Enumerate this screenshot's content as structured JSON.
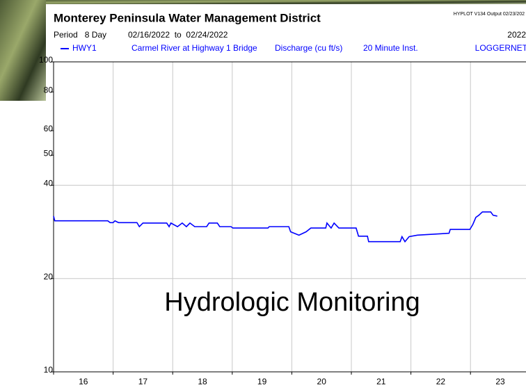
{
  "chart_data": {
    "type": "line",
    "title": "Monterey Peninsula Water Management District",
    "program_note": "HYPLOT V134  Output 02/23/202",
    "period": "Period   8 Day",
    "date_range": "02/16/2022  to  02/24/2022",
    "year": "2022",
    "station": "Carmel River at Highway 1 Bridge",
    "parameter": "Discharge (cu ft/s)",
    "interval": "20 Minute Inst.",
    "source": "LOGGERNET",
    "annotation": "Hydrologic Monitoring",
    "x": [
      16.0,
      16.02,
      16.91,
      16.95,
      17.0,
      17.03,
      17.09,
      17.4,
      17.44,
      17.5,
      17.9,
      17.94,
      17.97,
      18.08,
      18.16,
      18.23,
      18.29,
      18.37,
      18.57,
      18.61,
      18.75,
      18.79,
      18.98,
      19.01,
      19.6,
      19.62,
      19.95,
      19.98,
      20.12,
      20.24,
      20.32,
      20.57,
      20.59,
      20.66,
      20.71,
      20.79,
      21.08,
      21.12,
      21.27,
      21.29,
      21.82,
      21.85,
      21.9,
      21.97,
      22.11,
      22.64,
      22.66,
      22.99,
      23.04,
      23.09,
      23.14,
      23.2,
      23.34,
      23.38,
      23.45
    ],
    "series": [
      {
        "name": "HWY1",
        "color": "#0000ff",
        "values": [
          31.8,
          30.7,
          30.7,
          30.3,
          30.3,
          30.7,
          30.3,
          30.3,
          29.4,
          30.2,
          30.2,
          29.4,
          30.2,
          29.4,
          30.2,
          29.4,
          30.2,
          29.4,
          29.4,
          30.2,
          30.2,
          29.4,
          29.4,
          29.1,
          29.1,
          29.4,
          29.4,
          28.3,
          27.6,
          28.3,
          29.1,
          29.1,
          30.2,
          29.1,
          30.2,
          29.1,
          29.1,
          27.4,
          27.4,
          26.3,
          26.3,
          27.3,
          26.3,
          27.3,
          27.6,
          28.0,
          28.8,
          28.8,
          29.9,
          31.5,
          32.0,
          32.8,
          32.8,
          32.0,
          31.8
        ]
      }
    ],
    "xlim": [
      16,
      24
    ],
    "xticks": [
      16,
      17,
      18,
      19,
      20,
      21,
      22,
      23
    ],
    "ylim": [
      10,
      100
    ],
    "yticks": [
      10,
      20,
      40,
      50,
      60,
      80,
      100
    ],
    "log_y": true,
    "ygrid": [
      20,
      40
    ],
    "xgrid": true
  }
}
